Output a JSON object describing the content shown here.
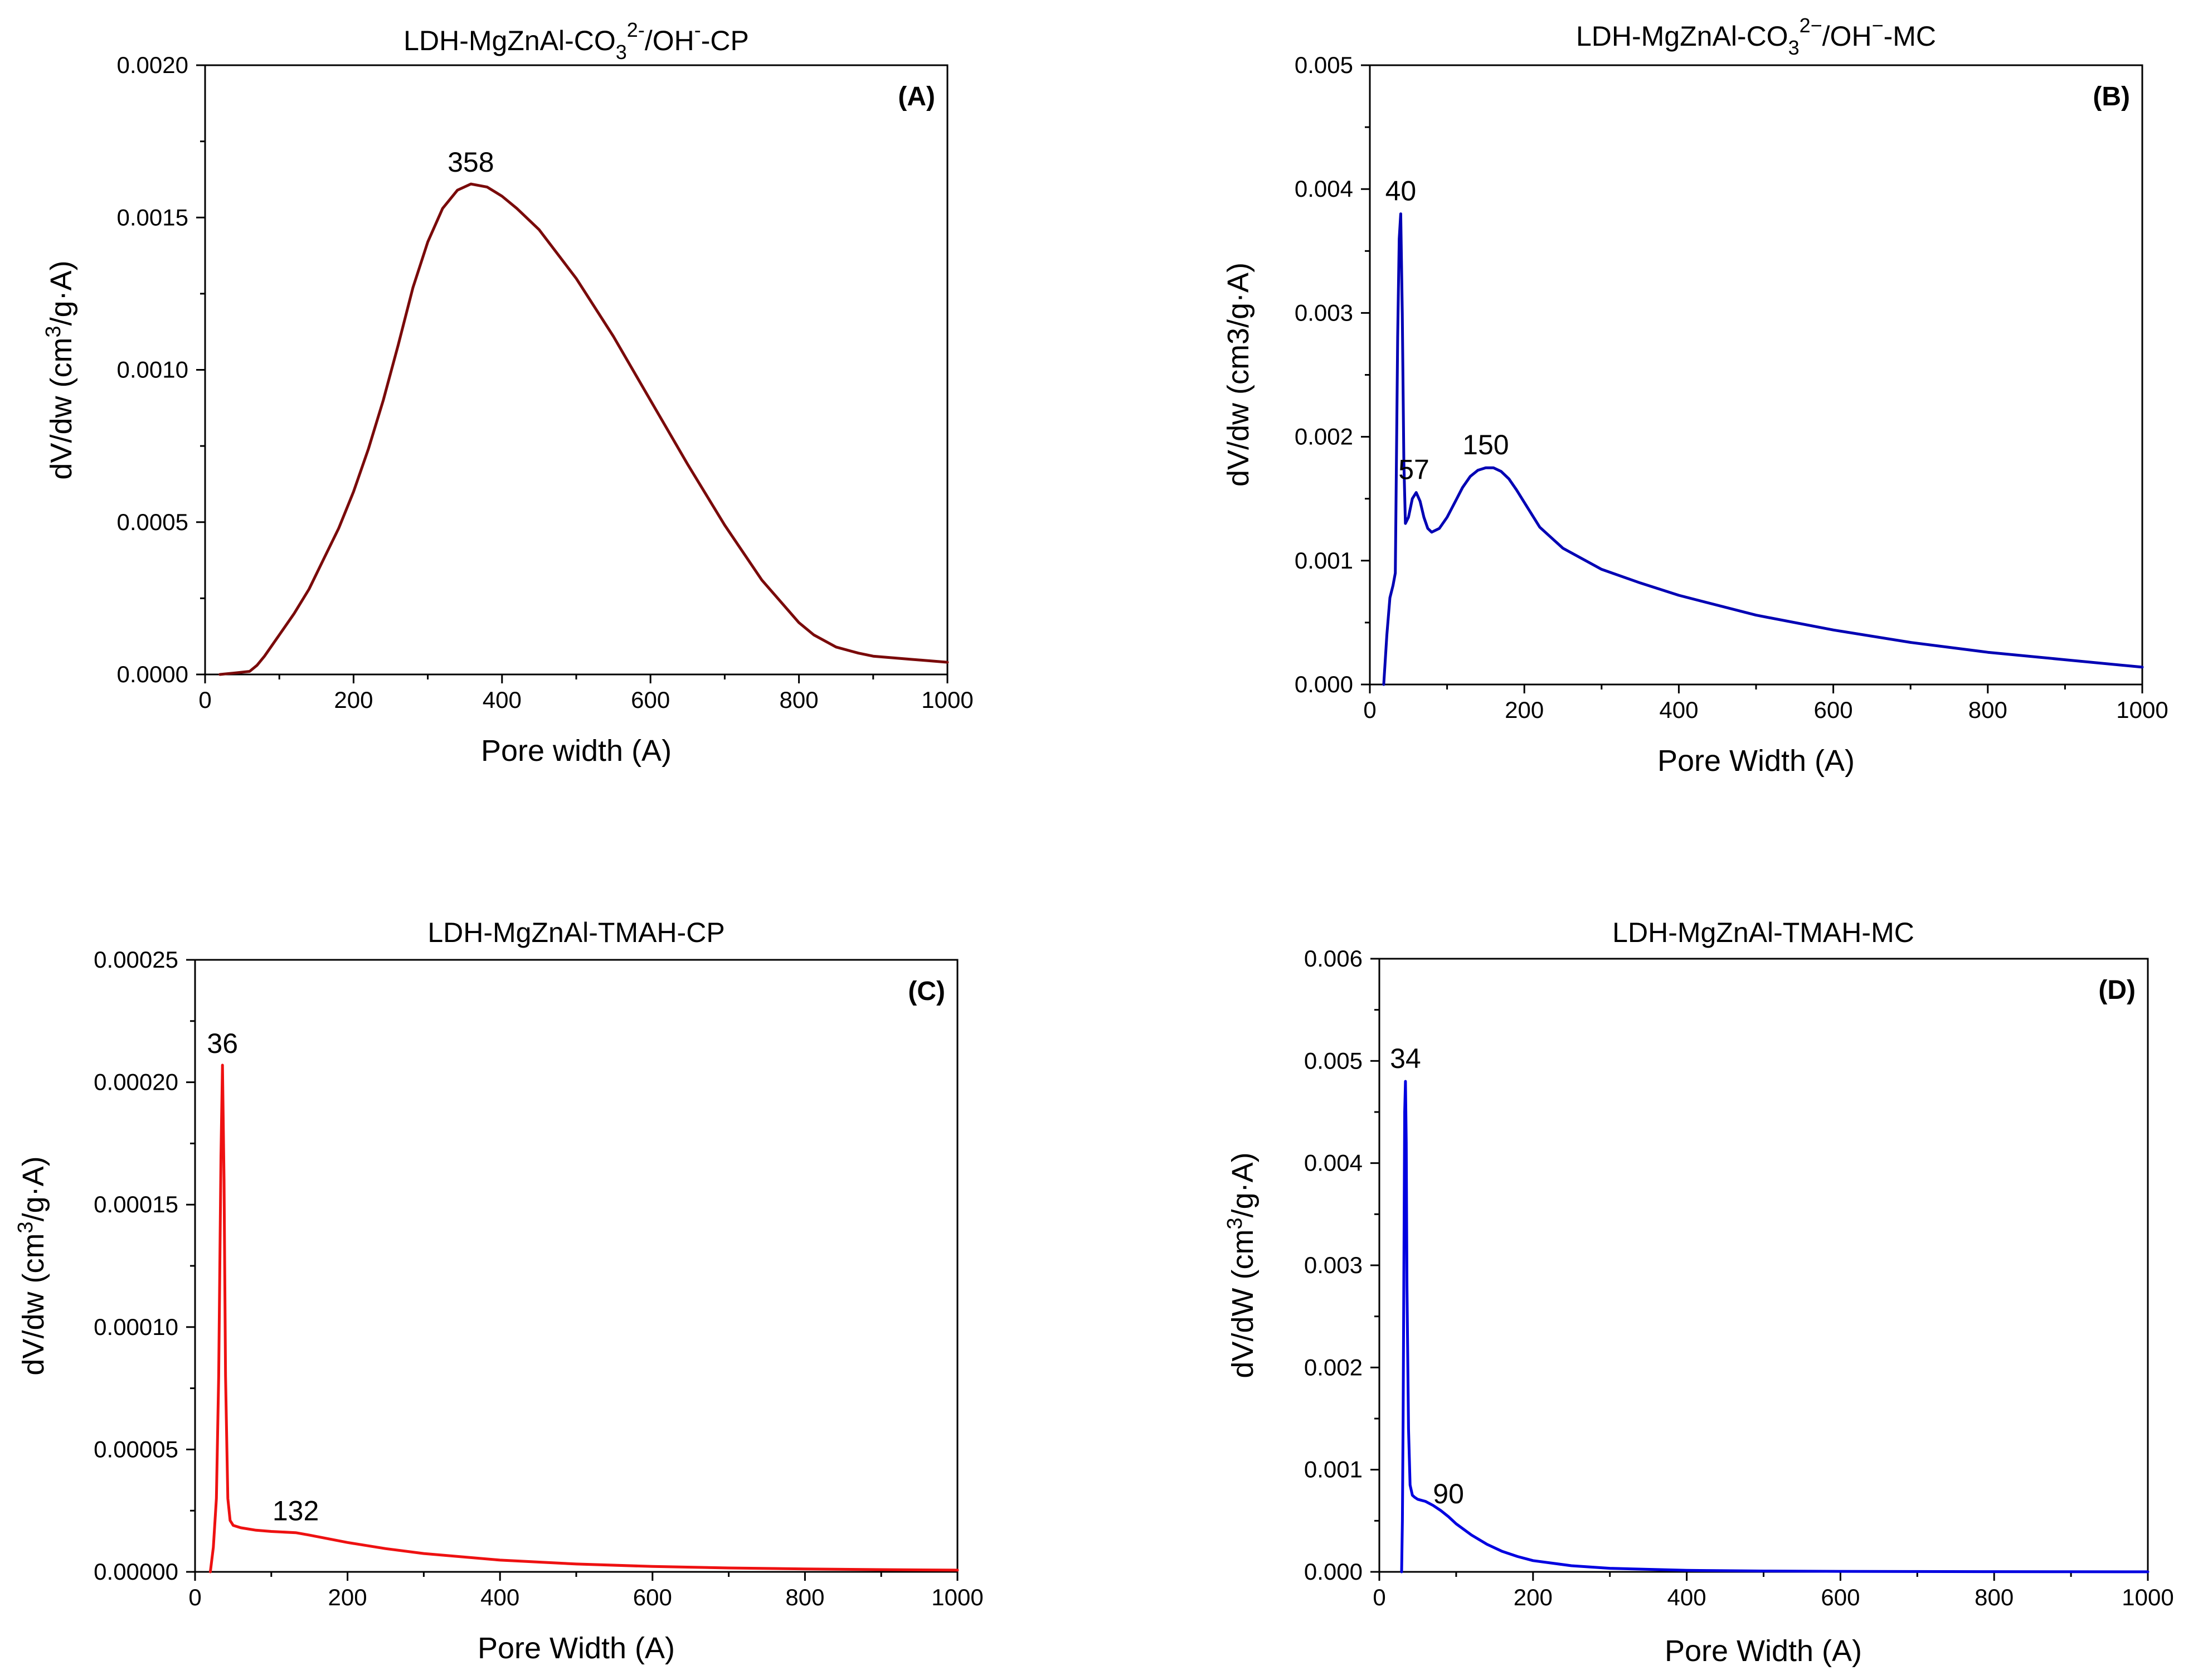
{
  "chart_data": [
    {
      "type": "line",
      "panel": "(A)",
      "title": {
        "pre": "LDH-MgZnAl-CO",
        "sub": "3",
        "sup": "2-",
        "post": "/OH",
        "sup2": "-",
        "post2": "-CP"
      },
      "xlabel": "Pore width (A)",
      "ylabel": {
        "pre": "dV/dw (cm",
        "sup": "3",
        "post": "/g·A)"
      },
      "xlim": [
        0,
        1000
      ],
      "ylim": [
        0,
        0.002
      ],
      "xticks": [
        "0",
        "200",
        "400",
        "600",
        "800",
        "1000"
      ],
      "xtick_values": [
        0,
        200,
        400,
        600,
        800,
        1000
      ],
      "yticks": [
        "0.0000",
        "0.0005",
        "0.0010",
        "0.0015",
        "0.0020"
      ],
      "ytick_values": [
        0,
        0.0005,
        0.001,
        0.0015,
        0.002
      ],
      "color": "#7a0a0a",
      "x": [
        20,
        40,
        60,
        70,
        80,
        100,
        120,
        140,
        160,
        180,
        200,
        220,
        240,
        260,
        280,
        300,
        320,
        340,
        358,
        380,
        400,
        420,
        450,
        500,
        550,
        600,
        650,
        700,
        750,
        800,
        820,
        850,
        880,
        900,
        950,
        1000
      ],
      "y": [
        0.0,
        5e-06,
        1e-05,
        3e-05,
        6e-05,
        0.00013,
        0.0002,
        0.00028,
        0.00038,
        0.00048,
        0.0006,
        0.00074,
        0.0009,
        0.00108,
        0.00127,
        0.00142,
        0.00153,
        0.00159,
        0.00161,
        0.0016,
        0.00157,
        0.00153,
        0.00146,
        0.0013,
        0.00111,
        0.0009,
        0.00069,
        0.00049,
        0.00031,
        0.00017,
        0.00013,
        9e-05,
        7e-05,
        6e-05,
        5e-05,
        4e-05
      ],
      "annotations": [
        {
          "text": "358",
          "x": 358,
          "y": 0.00161
        }
      ]
    },
    {
      "type": "line",
      "panel": "(B)",
      "title": {
        "pre": "LDH-MgZnAl-CO",
        "sub": "3",
        "sup": "2−",
        "post": "/OH",
        "sup2": "−",
        "post2": "-MC"
      },
      "xlabel": "Pore Width (A)",
      "ylabel": {
        "pre": "dV/dw (cm3/g·A)",
        "sup": "",
        "post": ""
      },
      "xlim": [
        0,
        1000
      ],
      "ylim": [
        0,
        0.005
      ],
      "xticks": [
        "0",
        "200",
        "400",
        "600",
        "800",
        "1000"
      ],
      "xtick_values": [
        0,
        200,
        400,
        600,
        800,
        1000
      ],
      "yticks": [
        "0.000",
        "0.001",
        "0.002",
        "0.003",
        "0.004",
        "0.005"
      ],
      "ytick_values": [
        0,
        0.001,
        0.002,
        0.003,
        0.004,
        0.005
      ],
      "color": "#0000b4",
      "x": [
        18,
        22,
        26,
        30,
        33,
        36,
        38,
        40,
        42,
        44,
        46,
        50,
        55,
        60,
        65,
        70,
        75,
        80,
        90,
        100,
        110,
        120,
        130,
        140,
        150,
        160,
        170,
        180,
        190,
        200,
        220,
        250,
        300,
        350,
        400,
        500,
        600,
        700,
        800,
        900,
        1000
      ],
      "y": [
        0.0,
        0.0004,
        0.0007,
        0.0008,
        0.0009,
        0.0028,
        0.0036,
        0.0038,
        0.003,
        0.0018,
        0.0013,
        0.00135,
        0.0015,
        0.00155,
        0.00148,
        0.00135,
        0.00126,
        0.00123,
        0.00126,
        0.00135,
        0.00147,
        0.00159,
        0.00168,
        0.00173,
        0.00175,
        0.00175,
        0.00172,
        0.00166,
        0.00157,
        0.00147,
        0.00127,
        0.0011,
        0.00093,
        0.00082,
        0.00072,
        0.00056,
        0.00044,
        0.00034,
        0.00026,
        0.0002,
        0.00014
      ],
      "annotations": [
        {
          "text": "40",
          "x": 40,
          "y": 0.0038
        },
        {
          "text": "57",
          "x": 57,
          "y": 0.00155
        },
        {
          "text": "150",
          "x": 150,
          "y": 0.00175
        }
      ]
    },
    {
      "type": "line",
      "panel": "(C)",
      "title": {
        "pre": "LDH-MgZnAl-TMAH-CP",
        "sub": "",
        "sup": "",
        "post": "",
        "sup2": "",
        "post2": ""
      },
      "xlabel": "Pore Width (A)",
      "ylabel": {
        "pre": "dV/dw (cm",
        "sup": "3",
        "post": "/g·A)"
      },
      "xlim": [
        0,
        1000
      ],
      "ylim": [
        0,
        0.00025
      ],
      "xticks": [
        "0",
        "200",
        "400",
        "600",
        "800",
        "1000"
      ],
      "xtick_values": [
        0,
        200,
        400,
        600,
        800,
        1000
      ],
      "yticks": [
        "0.00000",
        "0.00005",
        "0.00010",
        "0.00015",
        "0.00020",
        "0.00025"
      ],
      "ytick_values": [
        0,
        5e-05,
        0.0001,
        0.00015,
        0.0002,
        0.00025
      ],
      "color": "#ee1111",
      "x": [
        20,
        24,
        28,
        31,
        34,
        36,
        38,
        40,
        43,
        46,
        50,
        60,
        80,
        100,
        132,
        150,
        200,
        250,
        300,
        400,
        500,
        600,
        700,
        800,
        900,
        1000
      ],
      "y": [
        0.0,
        1e-05,
        3e-05,
        8e-05,
        0.00017,
        0.000207,
        0.00016,
        8e-05,
        3e-05,
        2.1e-05,
        1.9e-05,
        1.8e-05,
        1.7e-05,
        1.65e-05,
        1.6e-05,
        1.5e-05,
        1.2e-05,
        9.5e-06,
        7.5e-06,
        4.8e-06,
        3.2e-06,
        2.2e-06,
        1.6e-06,
        1.2e-06,
        9e-07,
        7e-07
      ],
      "annotations": [
        {
          "text": "36",
          "x": 36,
          "y": 0.000207
        },
        {
          "text": "132",
          "x": 132,
          "y": 1.6e-05
        }
      ]
    },
    {
      "type": "line",
      "panel": "(D)",
      "title": {
        "pre": "LDH-MgZnAl-TMAH-MC",
        "sub": "",
        "sup": "",
        "post": "",
        "sup2": "",
        "post2": ""
      },
      "xlabel": "Pore Width (A)",
      "ylabel": {
        "pre": "dV/dW (cm",
        "sup": "3",
        "post": "/g·A)"
      },
      "xlim": [
        0,
        1000
      ],
      "ylim": [
        0,
        0.006
      ],
      "xticks": [
        "0",
        "200",
        "400",
        "600",
        "800",
        "1000"
      ],
      "xtick_values": [
        0,
        200,
        400,
        600,
        800,
        1000
      ],
      "yticks": [
        "0.000",
        "0.001",
        "0.002",
        "0.003",
        "0.004",
        "0.005",
        "0.006"
      ],
      "ytick_values": [
        0,
        0.001,
        0.002,
        0.003,
        0.004,
        0.005,
        0.006
      ],
      "color": "#0000e0",
      "x": [
        29,
        30,
        31,
        32,
        33,
        34,
        35,
        36,
        38,
        40,
        43,
        46,
        50,
        55,
        60,
        70,
        80,
        90,
        100,
        120,
        140,
        160,
        180,
        200,
        250,
        300,
        400,
        500,
        600,
        700,
        800,
        900,
        1000
      ],
      "y": [
        0.0,
        0.0005,
        0.0015,
        0.003,
        0.0045,
        0.0048,
        0.0042,
        0.0028,
        0.0014,
        0.00085,
        0.00075,
        0.00073,
        0.00071,
        0.0007,
        0.00069,
        0.00065,
        0.0006,
        0.00054,
        0.00047,
        0.00036,
        0.00027,
        0.0002,
        0.00015,
        0.00011,
        6e-05,
        3.5e-05,
        1.5e-05,
        8e-06,
        5e-06,
        3e-06,
        2e-06,
        1e-06,
        5e-07
      ],
      "annotations": [
        {
          "text": "34",
          "x": 34,
          "y": 0.0048
        },
        {
          "text": "90",
          "x": 90,
          "y": 0.00054
        }
      ]
    }
  ]
}
